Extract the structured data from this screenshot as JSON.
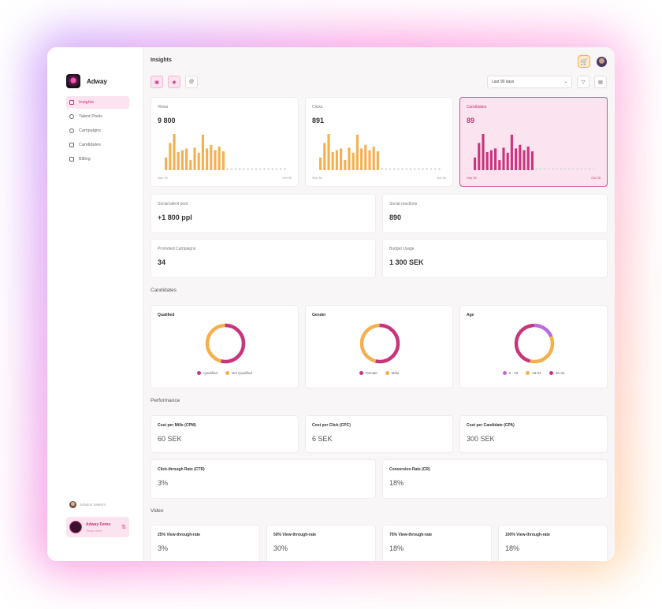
{
  "colors": {
    "pink": "#c8357c",
    "orange": "#f5b04e",
    "purple": "#b86bd9",
    "grey_dot": "#dedcdd"
  },
  "brand": {
    "name": "Adway"
  },
  "nav": [
    {
      "label": "Insights",
      "icon": "insights-icon",
      "active": true
    },
    {
      "label": "Talent Pools",
      "icon": "talent-pools-icon",
      "active": false
    },
    {
      "label": "Campaigns",
      "icon": "campaigns-icon",
      "active": false
    },
    {
      "label": "Candidates",
      "icon": "candidates-icon",
      "active": false
    },
    {
      "label": "Billing",
      "icon": "billing-icon",
      "active": false
    }
  ],
  "user": {
    "name": "Solution Sekerm"
  },
  "client": {
    "name": "Adway Demo",
    "sub": "Swap client"
  },
  "header": {
    "title": "Insights",
    "date_range": "Last 90 days"
  },
  "metrics": {
    "views": {
      "label": "Views",
      "value": "9 800",
      "start": "Sep 30",
      "end": "Oct 30",
      "bars": [
        0.35,
        0.75,
        1.0,
        0.5,
        0.55,
        0.6,
        0.28,
        0.62,
        0.48,
        0.98,
        0.6,
        0.7,
        0.55,
        0.65,
        0.52
      ]
    },
    "clicks": {
      "label": "Clicks",
      "value": "891",
      "start": "Sep 30",
      "end": "Oct 30",
      "bars": [
        0.35,
        0.75,
        1.0,
        0.5,
        0.55,
        0.6,
        0.28,
        0.62,
        0.48,
        0.98,
        0.6,
        0.7,
        0.55,
        0.65,
        0.52
      ]
    },
    "candidates": {
      "label": "Candidates",
      "value": "89",
      "start": "Sep 30",
      "end": "Oct 30",
      "bars": [
        0.35,
        0.75,
        1.0,
        0.5,
        0.55,
        0.6,
        0.28,
        0.62,
        0.48,
        0.98,
        0.6,
        0.7,
        0.55,
        0.65,
        0.52
      ]
    },
    "empty_days": 15
  },
  "stats": {
    "social_talent_pool": {
      "label": "Social talent pool",
      "value": "+1 800 ppl"
    },
    "social_reactions": {
      "label": "Social reactions",
      "value": "890"
    },
    "promoted_campaigns": {
      "label": "Promoted Campaigns",
      "value": "34"
    },
    "budget_usage": {
      "label": "Budget Usage",
      "value": "1 300 SEK"
    }
  },
  "candidates_section": {
    "title": "Candidates",
    "qualified": {
      "label": "Qualified",
      "legend": [
        "Qualified",
        "Not Qualified"
      ],
      "shares": [
        0.55,
        0.45
      ]
    },
    "gender": {
      "label": "Gender",
      "legend": [
        "Female",
        "Male"
      ],
      "shares": [
        0.55,
        0.45
      ]
    },
    "age": {
      "label": "Age",
      "legend": [
        "0 - 18",
        "18-24",
        "26-32"
      ],
      "shares": [
        0.2,
        0.35,
        0.45
      ]
    }
  },
  "performance": {
    "title": "Performance",
    "cpm": {
      "label": "Cost per Mille (CPM)",
      "value": "60 SEK"
    },
    "cpc": {
      "label": "Cost per Click (CPC)",
      "value": "6 SEK"
    },
    "cpa": {
      "label": "Cost per Candidate (CPA)",
      "value": "300 SEK"
    },
    "ctr": {
      "label": "Click-through Rate (CTR)",
      "value": "3%"
    },
    "cr": {
      "label": "Conversion Rate (CR)",
      "value": "18%"
    }
  },
  "video": {
    "title": "Video",
    "items": [
      {
        "label": "25% View-through-rate",
        "value": "3%"
      },
      {
        "label": "50% View-through-rate",
        "value": "30%"
      },
      {
        "label": "75% View-through-rate",
        "value": "18%"
      },
      {
        "label": "100% View-through-rate",
        "value": "18%"
      }
    ]
  }
}
